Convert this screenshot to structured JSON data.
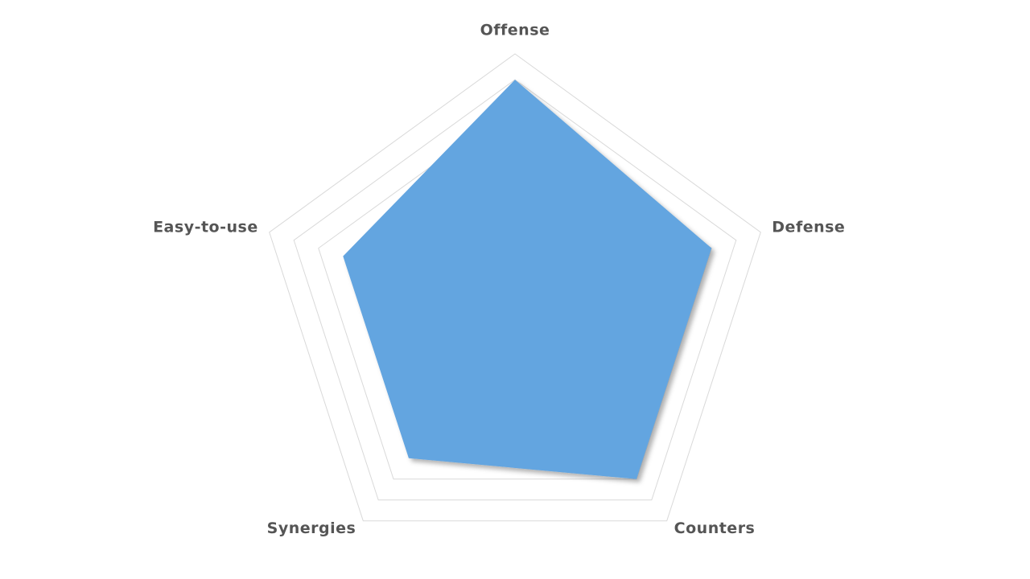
{
  "chart_data": {
    "type": "radar",
    "categories": [
      "Offense",
      "Defense",
      "Counters",
      "Synergies",
      "Easy-to-use"
    ],
    "values": [
      9,
      8,
      8,
      7,
      7
    ],
    "color": "#64a5e0",
    "rlim": [
      0,
      10
    ],
    "grid_levels": [
      8,
      9,
      10
    ],
    "grid": true
  }
}
